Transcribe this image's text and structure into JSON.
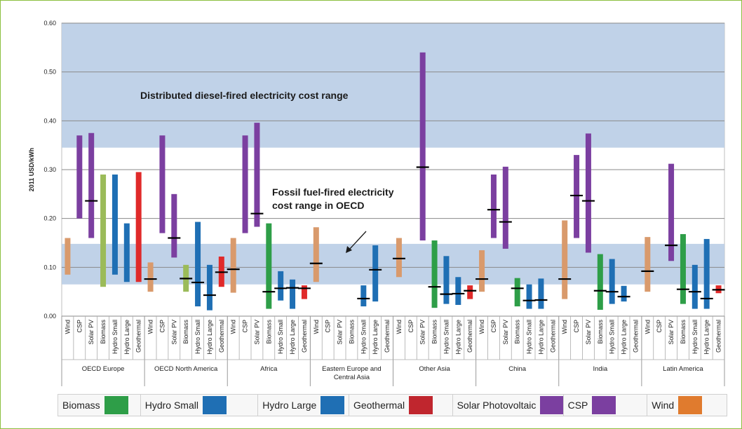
{
  "chart_data": {
    "type": "range-bar",
    "ylabel": "2011 USD/kWh",
    "ylim": [
      0,
      0.6
    ],
    "yticks": [
      "0.00",
      "0.10",
      "0.20",
      "0.30",
      "0.40",
      "0.50",
      "0.60"
    ],
    "shaded_bands": [
      {
        "label": "Distributed diesel-fired electricity cost range",
        "y0": 0.345,
        "y1": 0.6
      },
      {
        "label": "Fossil fuel-fired electricity cost range in OECD",
        "y0": 0.065,
        "y1": 0.148
      }
    ],
    "annotations": [
      {
        "text": "Distributed diesel-fired electricity cost range"
      },
      {
        "text": "Fossil fuel-fired electricity cost range in OECD",
        "lines": [
          "Fossil fuel-fired electricity",
          "cost range in OECD"
        ],
        "arrow_from": [
          0.135,
          0.16
        ],
        "arrow_to": [
          0.125,
          0.125
        ]
      }
    ],
    "technologies": [
      "Wind",
      "CSP",
      "Solar PV",
      "Biomass",
      "Hydro Small",
      "Hydro Large",
      "Geothermal"
    ],
    "tech_colors": {
      "Wind": "#d99a6c",
      "CSP": "#7b3fa0",
      "Solar PV": "#7b3fa0",
      "Biomass": "#2e9e48",
      "Biomass (OECD)": "#9bbb59",
      "Hydro Small": "#1f6fb4",
      "Hydro Large": "#1f6fb4",
      "Geothermal": "#e02a2a"
    },
    "regions": [
      {
        "name": "OECD Europe",
        "bars": [
          {
            "tech": "Wind",
            "min": 0.085,
            "max": 0.16,
            "avg": null
          },
          {
            "tech": "CSP",
            "min": 0.2,
            "max": 0.37,
            "avg": null
          },
          {
            "tech": "Solar PV",
            "min": 0.16,
            "max": 0.375,
            "avg": 0.236
          },
          {
            "tech": "Biomass",
            "min": 0.06,
            "max": 0.29,
            "avg": null
          },
          {
            "tech": "Hydro Small",
            "min": 0.085,
            "max": 0.29,
            "avg": null
          },
          {
            "tech": "Hydro Large",
            "min": 0.07,
            "max": 0.19,
            "avg": null
          },
          {
            "tech": "Geothermal",
            "min": 0.07,
            "max": 0.295,
            "avg": null
          }
        ]
      },
      {
        "name": "OECD North America",
        "bars": [
          {
            "tech": "Wind",
            "min": 0.05,
            "max": 0.11,
            "avg": 0.076
          },
          {
            "tech": "CSP",
            "min": 0.17,
            "max": 0.37,
            "avg": null
          },
          {
            "tech": "Solar PV",
            "min": 0.12,
            "max": 0.25,
            "avg": 0.16
          },
          {
            "tech": "Biomass",
            "min": 0.05,
            "max": 0.105,
            "avg": 0.077
          },
          {
            "tech": "Hydro Small",
            "min": 0.02,
            "max": 0.193,
            "avg": 0.069
          },
          {
            "tech": "Hydro Large",
            "min": 0.012,
            "max": 0.105,
            "avg": 0.043
          },
          {
            "tech": "Geothermal",
            "min": 0.06,
            "max": 0.122,
            "avg": 0.09
          }
        ]
      },
      {
        "name": "Africa",
        "bars": [
          {
            "tech": "Wind",
            "min": 0.048,
            "max": 0.16,
            "avg": 0.096
          },
          {
            "tech": "CSP",
            "min": 0.17,
            "max": 0.37,
            "avg": null
          },
          {
            "tech": "Solar PV",
            "min": 0.183,
            "max": 0.396,
            "avg": 0.21
          },
          {
            "tech": "Biomass",
            "min": 0.015,
            "max": 0.19,
            "avg": 0.05
          },
          {
            "tech": "Hydro Small",
            "min": 0.032,
            "max": 0.092,
            "avg": 0.057
          },
          {
            "tech": "Hydro Large",
            "min": 0.015,
            "max": 0.075,
            "avg": 0.058
          },
          {
            "tech": "Geothermal",
            "min": 0.035,
            "max": 0.063,
            "avg": 0.057
          }
        ]
      },
      {
        "name": "Eastern Europe and Central Asia",
        "name_lines": [
          "Eastern Europe and",
          "Central Asia"
        ],
        "bars": [
          {
            "tech": "Wind",
            "min": 0.07,
            "max": 0.182,
            "avg": 0.108
          },
          {
            "tech": "CSP",
            "min": null,
            "max": null,
            "avg": null
          },
          {
            "tech": "Solar PV",
            "min": null,
            "max": null,
            "avg": null
          },
          {
            "tech": "Biomass",
            "min": null,
            "max": null,
            "avg": null
          },
          {
            "tech": "Hydro Small",
            "min": 0.02,
            "max": 0.063,
            "avg": 0.036
          },
          {
            "tech": "Hydro Large",
            "min": 0.03,
            "max": 0.145,
            "avg": 0.095
          },
          {
            "tech": "Geothermal",
            "min": null,
            "max": null,
            "avg": null
          }
        ]
      },
      {
        "name": "Other Asia",
        "bars": [
          {
            "tech": "Wind",
            "min": 0.08,
            "max": 0.16,
            "avg": 0.118
          },
          {
            "tech": "CSP",
            "min": null,
            "max": null,
            "avg": null
          },
          {
            "tech": "Solar PV",
            "min": 0.155,
            "max": 0.54,
            "avg": 0.305
          },
          {
            "tech": "Biomass",
            "min": 0.017,
            "max": 0.155,
            "avg": 0.06
          },
          {
            "tech": "Hydro Small",
            "min": 0.025,
            "max": 0.123,
            "avg": 0.045
          },
          {
            "tech": "Hydro Large",
            "min": 0.023,
            "max": 0.08,
            "avg": 0.046
          },
          {
            "tech": "Geothermal",
            "min": 0.035,
            "max": 0.063,
            "avg": 0.052
          }
        ]
      },
      {
        "name": "China",
        "bars": [
          {
            "tech": "Wind",
            "min": 0.05,
            "max": 0.135,
            "avg": 0.076
          },
          {
            "tech": "CSP",
            "min": 0.16,
            "max": 0.29,
            "avg": 0.218
          },
          {
            "tech": "Solar PV",
            "min": 0.138,
            "max": 0.306,
            "avg": 0.193
          },
          {
            "tech": "Biomass",
            "min": 0.02,
            "max": 0.078,
            "avg": 0.057
          },
          {
            "tech": "Hydro Small",
            "min": 0.015,
            "max": 0.065,
            "avg": 0.032
          },
          {
            "tech": "Hydro Large",
            "min": 0.015,
            "max": 0.077,
            "avg": 0.033
          },
          {
            "tech": "Geothermal",
            "min": null,
            "max": null,
            "avg": null
          }
        ]
      },
      {
        "name": "India",
        "bars": [
          {
            "tech": "Wind",
            "min": 0.035,
            "max": 0.196,
            "avg": 0.076
          },
          {
            "tech": "CSP",
            "min": 0.16,
            "max": 0.33,
            "avg": 0.247
          },
          {
            "tech": "Solar PV",
            "min": 0.13,
            "max": 0.374,
            "avg": 0.236
          },
          {
            "tech": "Biomass",
            "min": 0.013,
            "max": 0.127,
            "avg": 0.052
          },
          {
            "tech": "Hydro Small",
            "min": 0.025,
            "max": 0.117,
            "avg": 0.05
          },
          {
            "tech": "Hydro Large",
            "min": 0.03,
            "max": 0.062,
            "avg": 0.04
          },
          {
            "tech": "Geothermal",
            "min": null,
            "max": null,
            "avg": null
          }
        ]
      },
      {
        "name": "Latin America",
        "bars": [
          {
            "tech": "Wind",
            "min": 0.05,
            "max": 0.162,
            "avg": 0.092
          },
          {
            "tech": "CSP",
            "min": null,
            "max": null,
            "avg": null
          },
          {
            "tech": "Solar PV",
            "min": 0.113,
            "max": 0.312,
            "avg": 0.145
          },
          {
            "tech": "Biomass",
            "min": 0.025,
            "max": 0.168,
            "avg": 0.055
          },
          {
            "tech": "Hydro Small",
            "min": 0.015,
            "max": 0.105,
            "avg": 0.05
          },
          {
            "tech": "Hydro Large",
            "min": 0.015,
            "max": 0.158,
            "avg": 0.036
          },
          {
            "tech": "Geothermal",
            "min": 0.047,
            "max": 0.063,
            "avg": 0.054
          }
        ]
      }
    ],
    "legend": [
      {
        "label": "Biomass",
        "color": "#2e9e48"
      },
      {
        "label": "Hydro Small",
        "color": "#1f6fb4"
      },
      {
        "label": "Hydro Large",
        "color": "#1f6fb4"
      },
      {
        "label": "Geothermal",
        "color": "#c0262e"
      },
      {
        "label": "Solar Photovoltaic",
        "color": "#7b3fa0"
      },
      {
        "label": "CSP",
        "color": "#7b3fa0"
      },
      {
        "label": "Wind",
        "color": "#e07b2e"
      }
    ]
  }
}
